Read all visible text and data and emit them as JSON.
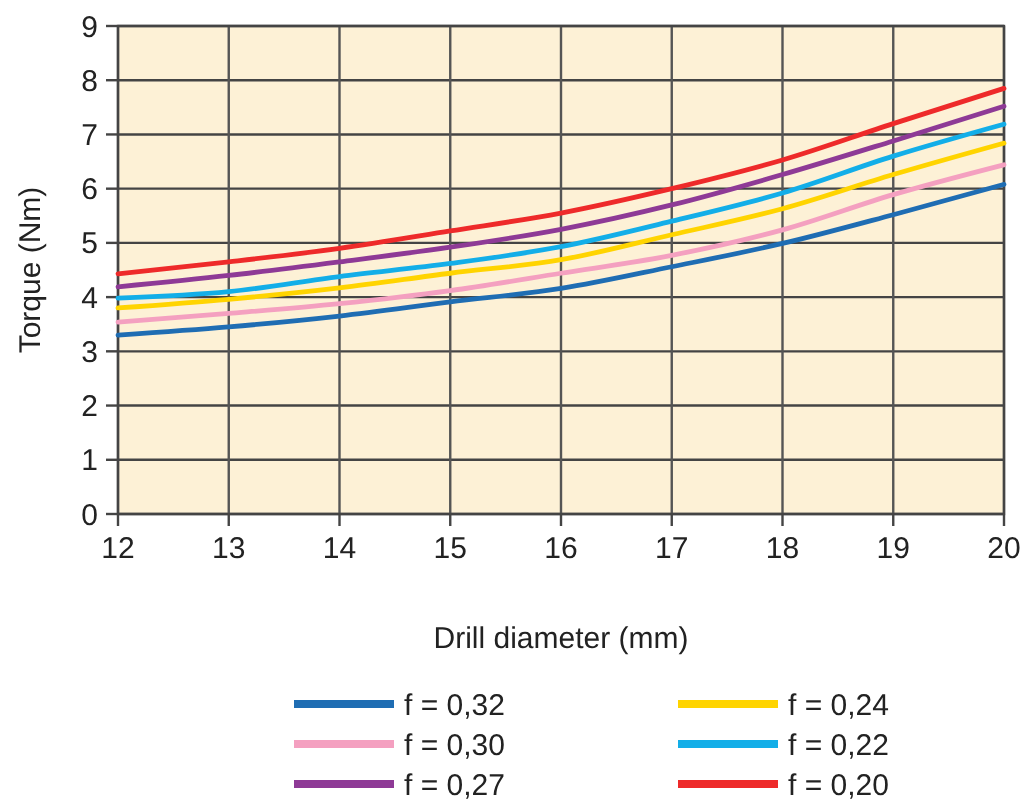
{
  "chart_data": {
    "type": "line",
    "xlabel": "Drill diameter (mm)",
    "ylabel": "Torque (Nm)",
    "x": [
      12,
      13,
      14,
      15,
      16,
      17,
      18,
      19,
      20
    ],
    "xlim": [
      12,
      20
    ],
    "ylim": [
      0,
      9
    ],
    "xticks": [
      12,
      13,
      14,
      15,
      16,
      17,
      18,
      19,
      20
    ],
    "yticks": [
      0,
      1,
      2,
      3,
      4,
      5,
      6,
      7,
      8,
      9
    ],
    "grid": true,
    "legend": "bottom",
    "line_style": "solid",
    "marker": "none",
    "series": [
      {
        "name": "f = 0,32",
        "color": "#1f6db3",
        "values": [
          3.3,
          3.45,
          3.65,
          3.91,
          4.16,
          4.56,
          4.99,
          5.52,
          6.08
        ]
      },
      {
        "name": "f = 0,30",
        "color": "#f4a0c0",
        "values": [
          3.54,
          3.7,
          3.88,
          4.12,
          4.44,
          4.77,
          5.24,
          5.89,
          6.44
        ]
      },
      {
        "name": "f = 0,27",
        "color": "#8e3a96",
        "values": [
          4.19,
          4.4,
          4.65,
          4.92,
          5.25,
          5.7,
          6.26,
          6.88,
          7.52
        ]
      },
      {
        "name": "f = 0,24",
        "color": "#ffd400",
        "values": [
          3.8,
          3.96,
          4.17,
          4.44,
          4.69,
          5.15,
          5.63,
          6.26,
          6.84
        ]
      },
      {
        "name": "f = 0,22",
        "color": "#13aee8",
        "values": [
          3.98,
          4.1,
          4.38,
          4.62,
          4.93,
          5.4,
          5.92,
          6.6,
          7.19
        ]
      },
      {
        "name": "f = 0,20",
        "color": "#ee2a2a",
        "values": [
          4.43,
          4.65,
          4.9,
          5.22,
          5.55,
          6.0,
          6.53,
          7.2,
          7.85
        ]
      }
    ]
  }
}
